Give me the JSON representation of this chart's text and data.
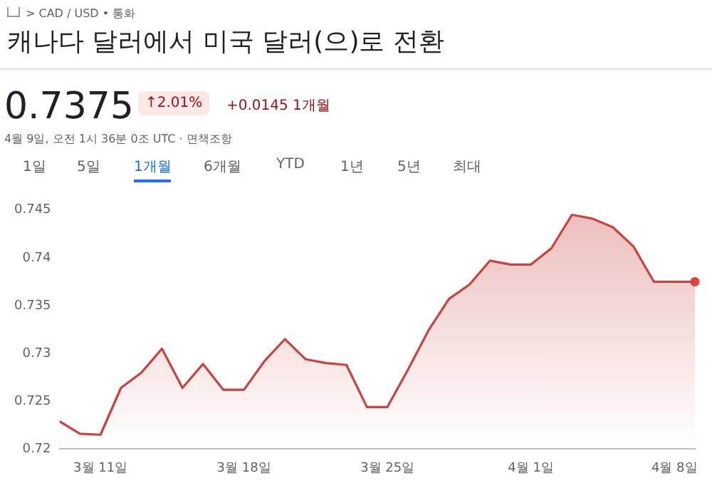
{
  "chart_data": {
    "type": "area",
    "title": "캐나다 달러에서 미국 달러(으)로 전환",
    "annotations": [
      "> CAD / USD • 통화",
      "0.7375",
      "↑2.01%",
      "+0.0145 1개월",
      "4월 9일, 오전 1시 36분 0조 UTC · 면책조항",
      "1일",
      "5일",
      "1개월",
      "6개월",
      "YTD",
      "1년",
      "5년",
      "최대"
    ],
    "x": [
      "--03-09",
      "--03-10",
      "--03-11",
      "--03-12",
      "--03-13",
      "--03-14",
      "--03-15",
      "--03-16",
      "--03-17",
      "--03-18",
      "--03-19",
      "--03-20",
      "--03-21",
      "--03-22",
      "--03-23",
      "--03-24",
      "--03-25",
      "--03-26",
      "--03-27",
      "--03-28",
      "--03-29",
      "--03-30",
      "--03-31",
      "--04-01",
      "--04-02",
      "--04-03",
      "--04-04",
      "--04-05",
      "--04-06",
      "--04-07",
      "--04-08",
      "--04-09"
    ],
    "series": [
      {
        "color": "#c8433d",
        "values": [
          0.7229,
          0.7216,
          0.7215,
          0.7264,
          0.728,
          0.7305,
          0.7264,
          0.7289,
          0.7262,
          0.7262,
          0.7292,
          0.7315,
          0.7294,
          0.729,
          0.7288,
          0.7244,
          0.7244,
          0.7283,
          0.7324,
          0.7357,
          0.7372,
          0.7397,
          0.7393,
          0.7393,
          0.741,
          0.7445,
          0.7441,
          0.7432,
          0.7412,
          0.7375,
          0.7375,
          0.7375
        ]
      },
      {
        "type": "scatter",
        "color": "#e0443c",
        "x": [
          "--04-09"
        ],
        "values": [
          0.7375
        ]
      }
    ],
    "xlim": [
      "--03-09",
      "--04-09"
    ],
    "xticks": [
      {
        "value": "--03-11",
        "label": "3월 11일"
      },
      {
        "value": "--03-18",
        "label": "3월 18일"
      },
      {
        "value": "--03-25",
        "label": "3월 25일"
      },
      {
        "value": "--04-01",
        "label": "4월 1일"
      },
      {
        "value": "--04-08",
        "label": "4월 8일"
      }
    ],
    "ylim": [
      0.72,
      0.745
    ],
    "yticks": [
      0.72,
      0.725,
      0.73,
      0.735,
      0.74,
      0.745
    ],
    "grid": false,
    "legend": false
  }
}
